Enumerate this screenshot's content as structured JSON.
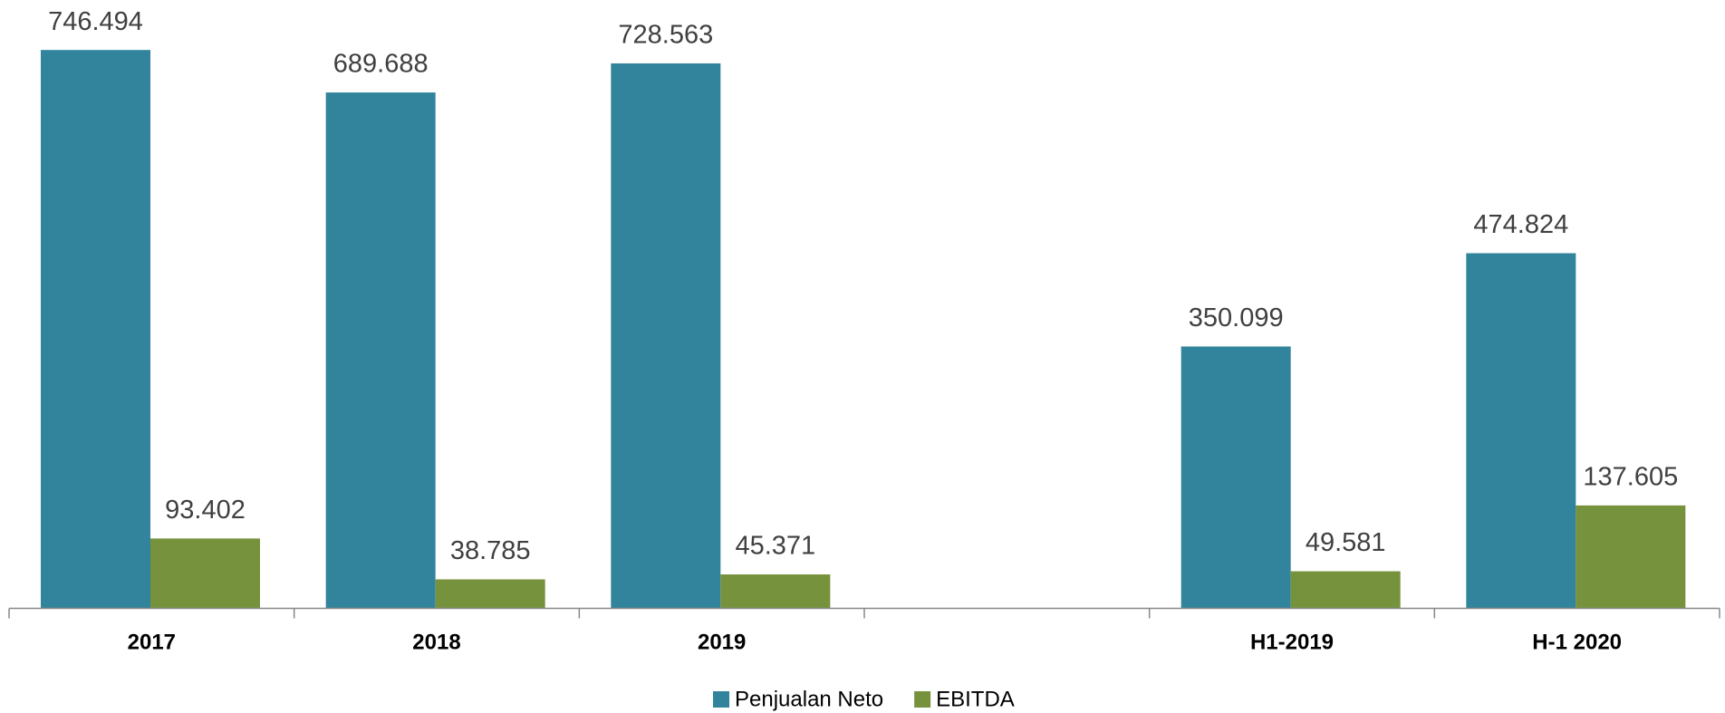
{
  "chart_data": {
    "type": "bar",
    "categories": [
      "2017",
      "2018",
      "2019",
      null,
      "H1-2019",
      "H-1 2020"
    ],
    "series": [
      {
        "name": "Penjualan Neto",
        "color": "#31849b",
        "values": [
          746.494,
          689.688,
          728.563,
          null,
          350.099,
          474.824
        ]
      },
      {
        "name": "EBITDA",
        "color": "#76923c",
        "values": [
          93.402,
          38.785,
          45.371,
          null,
          49.581,
          137.605
        ]
      }
    ],
    "ylim": [
      0,
      800
    ]
  }
}
